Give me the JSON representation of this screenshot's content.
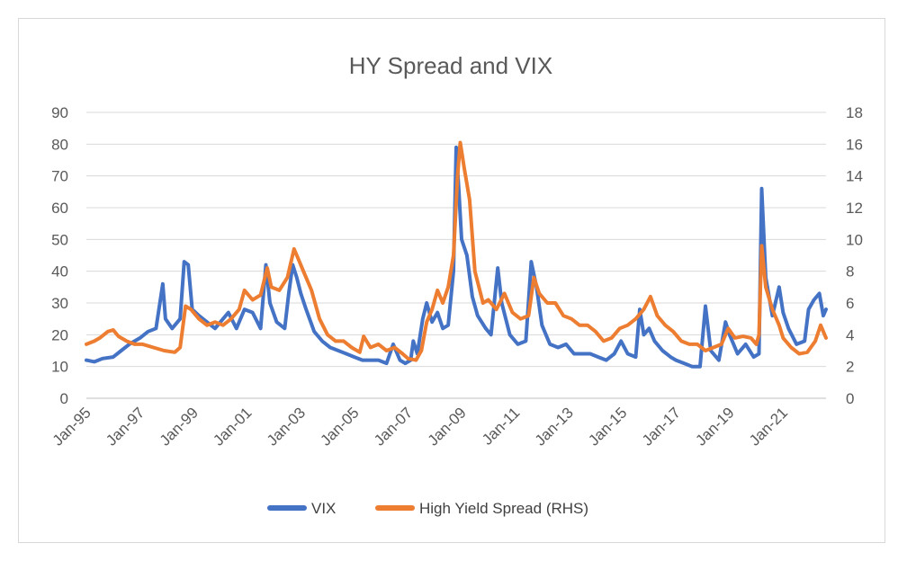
{
  "chart_data": {
    "type": "line",
    "title": "HY Spread and VIX",
    "x_tick_labels": [
      "Jan-95",
      "Jan-97",
      "Jan-99",
      "Jan-01",
      "Jan-03",
      "Jan-05",
      "Jan-07",
      "Jan-09",
      "Jan-11",
      "Jan-13",
      "Jan-15",
      "Jan-17",
      "Jan-19",
      "Jan-21"
    ],
    "x_range_years": [
      1995.0,
      2022.6
    ],
    "y_left": {
      "ticks": [
        0,
        10,
        20,
        30,
        40,
        50,
        60,
        70,
        80,
        90
      ],
      "range": [
        0,
        90
      ]
    },
    "y_right": {
      "ticks": [
        0,
        2,
        4,
        6,
        8,
        10,
        12,
        14,
        16,
        18
      ],
      "range": [
        0,
        18
      ]
    },
    "grid": true,
    "legend_position": "bottom",
    "series": [
      {
        "name": "VIX",
        "axis": "left",
        "color": "#4472C4",
        "points": [
          [
            1995.0,
            12
          ],
          [
            1995.3,
            11.5
          ],
          [
            1995.6,
            12.5
          ],
          [
            1996.0,
            13
          ],
          [
            1996.3,
            15
          ],
          [
            1996.6,
            17
          ],
          [
            1997.0,
            19
          ],
          [
            1997.3,
            21
          ],
          [
            1997.6,
            22
          ],
          [
            1997.85,
            36
          ],
          [
            1997.95,
            25
          ],
          [
            1998.2,
            22
          ],
          [
            1998.5,
            25
          ],
          [
            1998.65,
            43
          ],
          [
            1998.8,
            42
          ],
          [
            1998.95,
            28
          ],
          [
            1999.2,
            26
          ],
          [
            1999.5,
            24
          ],
          [
            1999.8,
            22
          ],
          [
            2000.1,
            25
          ],
          [
            2000.3,
            27
          ],
          [
            2000.6,
            22
          ],
          [
            2000.9,
            28
          ],
          [
            2001.2,
            27
          ],
          [
            2001.5,
            22
          ],
          [
            2001.7,
            42
          ],
          [
            2001.85,
            30
          ],
          [
            2002.1,
            24
          ],
          [
            2002.4,
            22
          ],
          [
            2002.55,
            33
          ],
          [
            2002.7,
            42
          ],
          [
            2002.85,
            38
          ],
          [
            2003.0,
            33
          ],
          [
            2003.2,
            28
          ],
          [
            2003.5,
            21
          ],
          [
            2003.8,
            18
          ],
          [
            2004.1,
            16
          ],
          [
            2004.4,
            15
          ],
          [
            2004.7,
            14
          ],
          [
            2005.0,
            13
          ],
          [
            2005.3,
            12
          ],
          [
            2005.6,
            12
          ],
          [
            2005.9,
            12
          ],
          [
            2006.2,
            11
          ],
          [
            2006.45,
            17
          ],
          [
            2006.7,
            12
          ],
          [
            2006.9,
            11
          ],
          [
            2007.1,
            12
          ],
          [
            2007.2,
            18
          ],
          [
            2007.35,
            14
          ],
          [
            2007.55,
            25
          ],
          [
            2007.7,
            30
          ],
          [
            2007.9,
            24
          ],
          [
            2008.1,
            27
          ],
          [
            2008.3,
            22
          ],
          [
            2008.5,
            23
          ],
          [
            2008.7,
            40
          ],
          [
            2008.8,
            79
          ],
          [
            2008.9,
            65
          ],
          [
            2009.0,
            50
          ],
          [
            2009.2,
            45
          ],
          [
            2009.4,
            32
          ],
          [
            2009.6,
            26
          ],
          [
            2009.9,
            22
          ],
          [
            2010.1,
            20
          ],
          [
            2010.35,
            41
          ],
          [
            2010.5,
            30
          ],
          [
            2010.8,
            20
          ],
          [
            2011.1,
            17
          ],
          [
            2011.4,
            18
          ],
          [
            2011.6,
            43
          ],
          [
            2011.8,
            35
          ],
          [
            2012.0,
            23
          ],
          [
            2012.3,
            17
          ],
          [
            2012.6,
            16
          ],
          [
            2012.9,
            17
          ],
          [
            2013.2,
            14
          ],
          [
            2013.5,
            14
          ],
          [
            2013.8,
            14
          ],
          [
            2014.1,
            13
          ],
          [
            2014.4,
            12
          ],
          [
            2014.7,
            14
          ],
          [
            2014.95,
            18
          ],
          [
            2015.2,
            14
          ],
          [
            2015.5,
            13
          ],
          [
            2015.65,
            28
          ],
          [
            2015.8,
            20
          ],
          [
            2016.0,
            22
          ],
          [
            2016.2,
            18
          ],
          [
            2016.5,
            15
          ],
          [
            2016.8,
            13
          ],
          [
            2017.0,
            12
          ],
          [
            2017.3,
            11
          ],
          [
            2017.6,
            10
          ],
          [
            2017.9,
            10
          ],
          [
            2018.1,
            29
          ],
          [
            2018.3,
            15
          ],
          [
            2018.6,
            12
          ],
          [
            2018.85,
            24
          ],
          [
            2019.0,
            20
          ],
          [
            2019.3,
            14
          ],
          [
            2019.6,
            17
          ],
          [
            2019.9,
            13
          ],
          [
            2020.1,
            14
          ],
          [
            2020.2,
            66
          ],
          [
            2020.35,
            38
          ],
          [
            2020.6,
            26
          ],
          [
            2020.85,
            35
          ],
          [
            2021.0,
            27
          ],
          [
            2021.2,
            22
          ],
          [
            2021.5,
            17
          ],
          [
            2021.8,
            18
          ],
          [
            2021.95,
            28
          ],
          [
            2022.15,
            31
          ],
          [
            2022.35,
            33
          ],
          [
            2022.5,
            26
          ],
          [
            2022.6,
            28
          ]
        ]
      },
      {
        "name": "High Yield Spread (RHS)",
        "axis": "right",
        "color": "#ED7D31",
        "points": [
          [
            1995.0,
            3.4
          ],
          [
            1995.3,
            3.6
          ],
          [
            1995.5,
            3.8
          ],
          [
            1995.8,
            4.2
          ],
          [
            1996.0,
            4.3
          ],
          [
            1996.2,
            3.9
          ],
          [
            1996.5,
            3.6
          ],
          [
            1996.8,
            3.4
          ],
          [
            1997.1,
            3.4
          ],
          [
            1997.5,
            3.2
          ],
          [
            1997.9,
            3.0
          ],
          [
            1998.3,
            2.9
          ],
          [
            1998.5,
            3.2
          ],
          [
            1998.7,
            5.8
          ],
          [
            1998.9,
            5.6
          ],
          [
            1999.2,
            5.0
          ],
          [
            1999.5,
            4.6
          ],
          [
            1999.8,
            4.8
          ],
          [
            2000.1,
            4.6
          ],
          [
            2000.4,
            5.0
          ],
          [
            2000.7,
            5.6
          ],
          [
            2000.9,
            6.8
          ],
          [
            2001.2,
            6.2
          ],
          [
            2001.5,
            6.5
          ],
          [
            2001.75,
            8.2
          ],
          [
            2001.9,
            7.0
          ],
          [
            2002.2,
            6.8
          ],
          [
            2002.5,
            7.6
          ],
          [
            2002.75,
            9.4
          ],
          [
            2002.9,
            8.8
          ],
          [
            2003.1,
            8.0
          ],
          [
            2003.4,
            6.8
          ],
          [
            2003.7,
            5.0
          ],
          [
            2004.0,
            4.0
          ],
          [
            2004.3,
            3.6
          ],
          [
            2004.6,
            3.6
          ],
          [
            2004.9,
            3.2
          ],
          [
            2005.2,
            2.9
          ],
          [
            2005.35,
            3.9
          ],
          [
            2005.6,
            3.2
          ],
          [
            2005.9,
            3.4
          ],
          [
            2006.2,
            3.0
          ],
          [
            2006.5,
            3.2
          ],
          [
            2006.8,
            2.8
          ],
          [
            2007.0,
            2.5
          ],
          [
            2007.3,
            2.4
          ],
          [
            2007.5,
            3.0
          ],
          [
            2007.7,
            4.8
          ],
          [
            2007.9,
            5.6
          ],
          [
            2008.1,
            6.8
          ],
          [
            2008.3,
            6.0
          ],
          [
            2008.5,
            7.0
          ],
          [
            2008.7,
            9.0
          ],
          [
            2008.85,
            14.0
          ],
          [
            2008.95,
            16.1
          ],
          [
            2009.1,
            14.5
          ],
          [
            2009.3,
            12.5
          ],
          [
            2009.5,
            8.0
          ],
          [
            2009.8,
            6.0
          ],
          [
            2010.0,
            6.2
          ],
          [
            2010.3,
            5.6
          ],
          [
            2010.6,
            6.6
          ],
          [
            2010.9,
            5.4
          ],
          [
            2011.2,
            5.0
          ],
          [
            2011.5,
            5.2
          ],
          [
            2011.7,
            7.6
          ],
          [
            2011.9,
            6.6
          ],
          [
            2012.2,
            6.0
          ],
          [
            2012.5,
            6.0
          ],
          [
            2012.8,
            5.2
          ],
          [
            2013.1,
            5.0
          ],
          [
            2013.4,
            4.6
          ],
          [
            2013.7,
            4.6
          ],
          [
            2014.0,
            4.2
          ],
          [
            2014.3,
            3.6
          ],
          [
            2014.6,
            3.8
          ],
          [
            2014.9,
            4.4
          ],
          [
            2015.2,
            4.6
          ],
          [
            2015.5,
            5.0
          ],
          [
            2015.8,
            5.6
          ],
          [
            2016.05,
            6.4
          ],
          [
            2016.3,
            5.2
          ],
          [
            2016.6,
            4.6
          ],
          [
            2016.9,
            4.2
          ],
          [
            2017.2,
            3.6
          ],
          [
            2017.5,
            3.4
          ],
          [
            2017.8,
            3.4
          ],
          [
            2018.1,
            3.0
          ],
          [
            2018.4,
            3.2
          ],
          [
            2018.7,
            3.4
          ],
          [
            2018.95,
            4.4
          ],
          [
            2019.2,
            3.8
          ],
          [
            2019.5,
            3.9
          ],
          [
            2019.8,
            3.8
          ],
          [
            2020.0,
            3.4
          ],
          [
            2020.1,
            4.0
          ],
          [
            2020.2,
            9.6
          ],
          [
            2020.35,
            7.0
          ],
          [
            2020.6,
            5.6
          ],
          [
            2020.85,
            4.6
          ],
          [
            2021.0,
            3.8
          ],
          [
            2021.3,
            3.2
          ],
          [
            2021.6,
            2.8
          ],
          [
            2021.9,
            2.9
          ],
          [
            2022.2,
            3.6
          ],
          [
            2022.4,
            4.6
          ],
          [
            2022.5,
            4.2
          ],
          [
            2022.6,
            3.8
          ]
        ]
      }
    ]
  }
}
